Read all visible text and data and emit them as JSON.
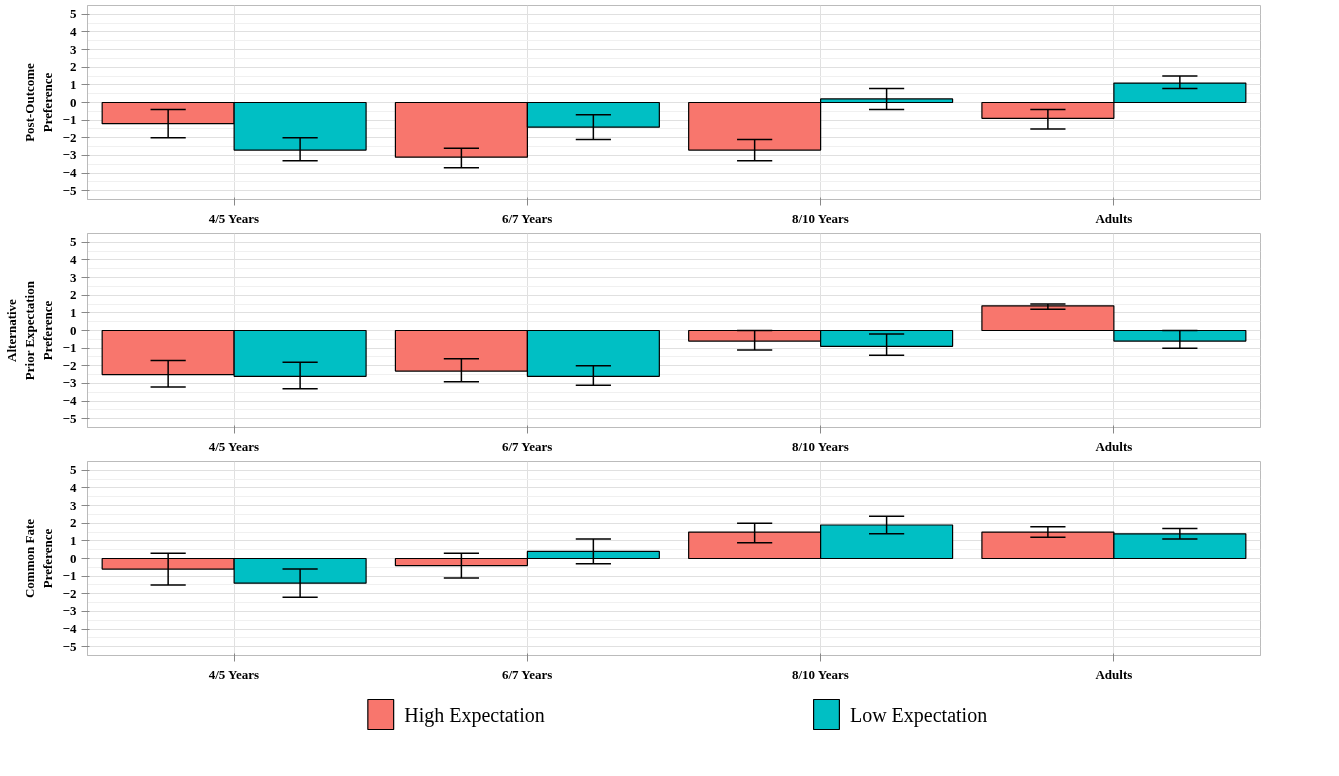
{
  "chart_data": [
    {
      "type": "bar",
      "ylabel": "Post-Outcome\nPreference",
      "categories": [
        "4/5 Years",
        "6/7 Years",
        "8/10 Years",
        "Adults"
      ],
      "ylim": [
        -5.5,
        5.5
      ],
      "yticks": [
        -5,
        -4,
        -3,
        -2,
        -1,
        0,
        1,
        2,
        3,
        4,
        5
      ],
      "grid": true,
      "series": [
        {
          "color": "#f8766d",
          "values": [
            -1.2,
            -3.1,
            -2.7,
            -0.9
          ],
          "errors": [
            [
              -2.0,
              -0.4
            ],
            [
              -3.7,
              -2.6
            ],
            [
              -3.3,
              -2.1
            ],
            [
              -1.5,
              -0.4
            ]
          ]
        },
        {
          "color": "#00bfc4",
          "values": [
            -2.7,
            -1.4,
            0.2,
            1.1
          ],
          "errors": [
            [
              -3.3,
              -2.0
            ],
            [
              -2.1,
              -0.7
            ],
            [
              -0.4,
              0.8
            ],
            [
              0.8,
              1.5
            ]
          ]
        }
      ]
    },
    {
      "type": "bar",
      "ylabel": "Alternative\nPrior Expectation\nPreference",
      "categories": [
        "4/5 Years",
        "6/7 Years",
        "8/10 Years",
        "Adults"
      ],
      "ylim": [
        -5.5,
        5.5
      ],
      "yticks": [
        -5,
        -4,
        -3,
        -2,
        -1,
        0,
        1,
        2,
        3,
        4,
        5
      ],
      "grid": true,
      "series": [
        {
          "color": "#f8766d",
          "values": [
            -2.5,
            -2.3,
            -0.6,
            1.4
          ],
          "errors": [
            [
              -3.2,
              -1.7
            ],
            [
              -2.9,
              -1.6
            ],
            [
              -1.1,
              0.0
            ],
            [
              1.2,
              1.5
            ]
          ]
        },
        {
          "color": "#00bfc4",
          "values": [
            -2.6,
            -2.6,
            -0.9,
            -0.6
          ],
          "errors": [
            [
              -3.3,
              -1.8
            ],
            [
              -3.1,
              -2.0
            ],
            [
              -1.4,
              -0.2
            ],
            [
              -1.0,
              0.0
            ]
          ]
        }
      ]
    },
    {
      "type": "bar",
      "ylabel": "Common Fate\nPreference",
      "categories": [
        "4/5 Years",
        "6/7 Years",
        "8/10 Years",
        "Adults"
      ],
      "ylim": [
        -5.5,
        5.5
      ],
      "yticks": [
        -5,
        -4,
        -3,
        -2,
        -1,
        0,
        1,
        2,
        3,
        4,
        5
      ],
      "grid": true,
      "legend": "bottom",
      "series": [
        {
          "name": "High Expectation",
          "color": "#f8766d",
          "values": [
            -0.6,
            -0.4,
            1.5,
            1.5
          ],
          "errors": [
            [
              -1.5,
              0.3
            ],
            [
              -1.1,
              0.3
            ],
            [
              0.9,
              2.0
            ],
            [
              1.2,
              1.8
            ]
          ]
        },
        {
          "name": "Low Expectation",
          "color": "#00bfc4",
          "values": [
            -1.4,
            0.4,
            1.9,
            1.4
          ],
          "errors": [
            [
              -2.2,
              -0.6
            ],
            [
              -0.3,
              1.1
            ],
            [
              1.4,
              2.4
            ],
            [
              1.1,
              1.7
            ]
          ]
        }
      ]
    }
  ]
}
